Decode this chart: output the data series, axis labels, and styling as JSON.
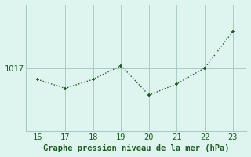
{
  "x": [
    16,
    17,
    18,
    19,
    20,
    21,
    22,
    23
  ],
  "y": [
    1016.5,
    1016.1,
    1016.5,
    1017.1,
    1015.8,
    1016.3,
    1017.0,
    1018.6
  ],
  "line_color": "#1e5c1e",
  "marker_color": "#1e5c1e",
  "bg_color": "#ddf4ef",
  "grid_color": "#aaccc6",
  "xlabel": "Graphe pression niveau de la mer (hPa)",
  "xlabel_color": "#1e5c1e",
  "ytick_label": "1017",
  "ytick_value": 1017,
  "xlim": [
    15.6,
    23.5
  ],
  "ylim": [
    1014.2,
    1019.8
  ],
  "xticks": [
    16,
    17,
    18,
    19,
    20,
    21,
    22,
    23
  ],
  "yticks": [
    1017
  ],
  "tick_fontsize": 7.5,
  "xlabel_fontsize": 7.5,
  "line_width": 1.0,
  "marker_size": 3.5
}
